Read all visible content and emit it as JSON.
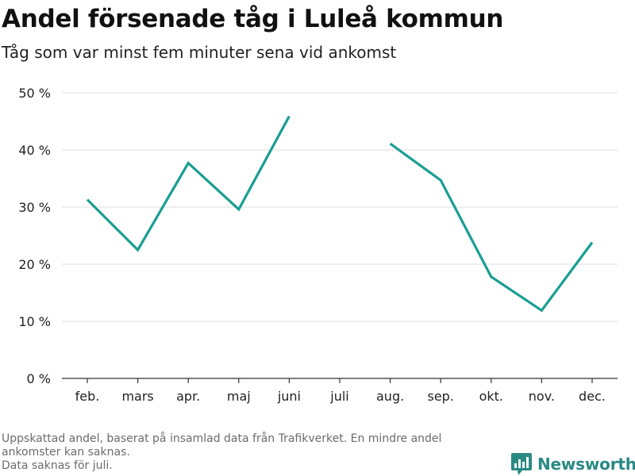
{
  "title": "Andel försenade tåg i Luleå kommun",
  "subtitle": "Tåg som var minst fem minuter sena vid ankomst",
  "footnote": {
    "line1": "Uppskattad andel, baserat på insamlad data från Trafikverket. En mindre andel",
    "line2": "ankomster kan saknas.",
    "line3": "Data saknas för juli."
  },
  "brand": {
    "name": "Newsworthy",
    "icon": "newsworthy-logo-icon",
    "color": "#2a8a83"
  },
  "chart_data": {
    "type": "line",
    "categories": [
      "feb.",
      "mars",
      "apr.",
      "maj",
      "juni",
      "juli",
      "aug.",
      "sep.",
      "okt.",
      "nov.",
      "dec."
    ],
    "series": [
      {
        "values": [
          31.3,
          22.5,
          37.7,
          29.6,
          45.9,
          null,
          41.1,
          34.7,
          17.8,
          11.9,
          23.8
        ]
      }
    ],
    "ylim": [
      0,
      50
    ],
    "yticks": [
      0,
      10,
      20,
      30,
      40,
      50
    ],
    "ytick_labels": [
      "0 %",
      "10 %",
      "20 %",
      "30 %",
      "40 %",
      "50 %"
    ],
    "grid": true,
    "line_color": "#1a9e92"
  }
}
